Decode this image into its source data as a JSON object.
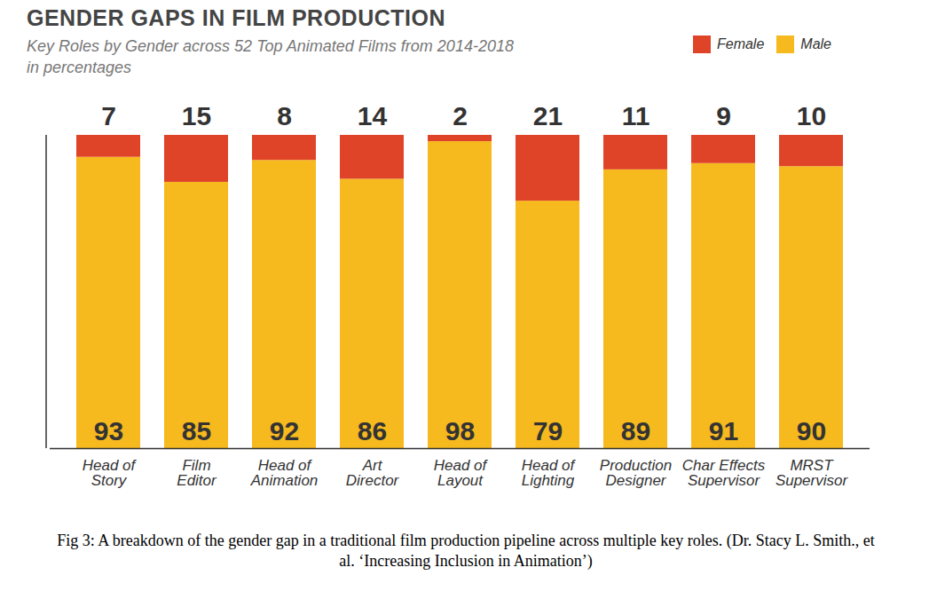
{
  "chart_data": {
    "type": "bar",
    "title": "GENDER GAPS IN FILM PRODUCTION",
    "subtitle": "Key Roles by Gender across 52 Top Animated Films from 2014-2018 in percentages",
    "caption": "Fig 3: A breakdown of the gender gap in a traditional film production pipeline across multiple key roles. (Dr. Stacy L. Smith., et al. ‘Increasing Inclusion in Animation’)",
    "categories": [
      "Head of Story",
      "Film Editor",
      "Head of Animation",
      "Art Director",
      "Head of Layout",
      "Head of Lighting",
      "Production Designer",
      "Char Effects Supervisor",
      "MRST Supervisor"
    ],
    "series": [
      {
        "name": "Male",
        "color": "#f6b91e",
        "values": [
          93,
          85,
          92,
          86,
          98,
          79,
          89,
          91,
          90
        ]
      },
      {
        "name": "Female",
        "color": "#df4429",
        "values": [
          7,
          15,
          8,
          14,
          2,
          21,
          11,
          9,
          10
        ]
      }
    ],
    "ylim": [
      0,
      100
    ],
    "stacked": true,
    "data_labels": true,
    "tick_labels": "x",
    "legend": "top-right"
  }
}
